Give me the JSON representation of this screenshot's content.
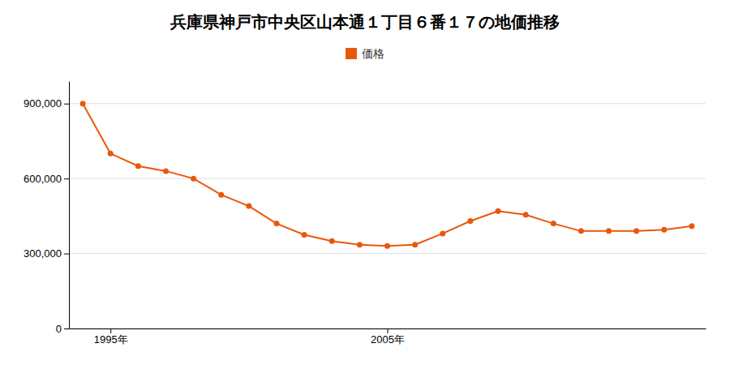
{
  "chart_data": {
    "type": "line",
    "title": "兵庫県神戸市中央区山本通１丁目６番１７の地価推移",
    "x": [
      1994,
      1995,
      1996,
      1997,
      1998,
      1999,
      2000,
      2001,
      2002,
      2003,
      2004,
      2005,
      2006,
      2007,
      2008,
      2009,
      2010,
      2011,
      2012,
      2013,
      2014,
      2015,
      2016
    ],
    "series": [
      {
        "name": "価格",
        "color": "#e8580a",
        "marker": "circle",
        "values": [
          900000,
          700000,
          650000,
          630000,
          600000,
          535000,
          490000,
          420000,
          375000,
          350000,
          335000,
          330000,
          335000,
          380000,
          430000,
          470000,
          455000,
          420000,
          390000,
          390000,
          390000,
          395000,
          410000
        ]
      }
    ],
    "xlim": [
      1993.5,
      2016.5
    ],
    "xticks": [
      {
        "value": 1995,
        "label": "1995年"
      },
      {
        "value": 2005,
        "label": "2005年"
      }
    ],
    "ylim": [
      0,
      990000
    ],
    "yticks": [
      0,
      {
        "value": 300000,
        "label": "300,000"
      },
      {
        "value": 600000,
        "label": "600,000"
      },
      {
        "value": 900000,
        "label": "900,000"
      }
    ],
    "grid": true,
    "legend": "top"
  }
}
